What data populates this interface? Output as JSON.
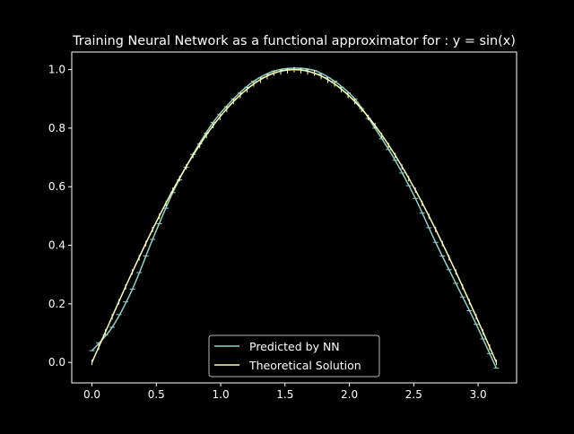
{
  "chart_data": {
    "type": "line",
    "title": "Training Neural Network as a functional approximator for : y = sin(x)",
    "xlabel": "",
    "ylabel": "",
    "xlim": [
      -0.157,
      3.299
    ],
    "ylim": [
      -0.07,
      1.06
    ],
    "xticks": [
      0.0,
      0.5,
      1.0,
      1.5,
      2.0,
      2.5,
      3.0
    ],
    "xtick_labels": [
      "0.0",
      "0.5",
      "1.0",
      "1.5",
      "2.0",
      "2.5",
      "3.0"
    ],
    "yticks": [
      0.0,
      0.2,
      0.4,
      0.6,
      0.8,
      1.0
    ],
    "ytick_labels": [
      "0.0",
      "0.2",
      "0.4",
      "0.6",
      "0.8",
      "1.0"
    ],
    "grid": false,
    "legend_position": "lower-center",
    "x": [
      0.0,
      0.157,
      0.314,
      0.471,
      0.628,
      0.785,
      0.942,
      1.1,
      1.257,
      1.414,
      1.571,
      1.728,
      1.885,
      2.042,
      2.199,
      2.356,
      2.513,
      2.67,
      2.827,
      2.985,
      3.142
    ],
    "series": [
      {
        "name": "Predicted by NN",
        "color": "#8dd3c7",
        "values": [
          0.04,
          0.12,
          0.25,
          0.42,
          0.58,
          0.71,
          0.82,
          0.9,
          0.96,
          0.995,
          1.005,
          0.997,
          0.96,
          0.9,
          0.8,
          0.69,
          0.56,
          0.41,
          0.27,
          0.13,
          -0.02
        ]
      },
      {
        "name": "Theoretical Solution",
        "color": "#feffb3",
        "values": [
          0.0,
          0.156,
          0.309,
          0.454,
          0.588,
          0.707,
          0.809,
          0.891,
          0.951,
          0.988,
          1.0,
          0.988,
          0.951,
          0.891,
          0.809,
          0.707,
          0.588,
          0.454,
          0.309,
          0.156,
          0.0
        ]
      }
    ]
  }
}
